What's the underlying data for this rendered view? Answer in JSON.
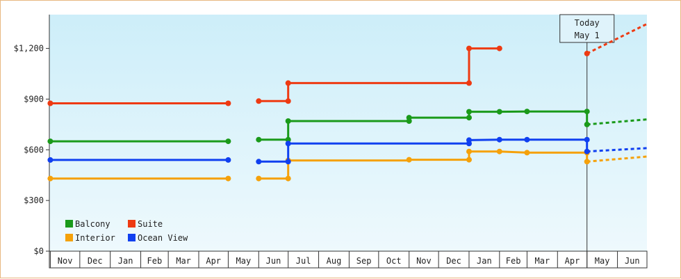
{
  "chart_data": {
    "type": "line",
    "title": "",
    "xlabel": "",
    "ylabel": "",
    "ylim": [
      0,
      1400
    ],
    "y_ticks": [
      0,
      300,
      600,
      900,
      1200
    ],
    "y_tick_labels": [
      "$0",
      "$300",
      "$600",
      "$900",
      "$1,200"
    ],
    "x_range": [
      "2017-10-31",
      "2019-07-01"
    ],
    "x_months": [
      "Nov",
      "Dec",
      "Jan",
      "Feb",
      "Mar",
      "Apr",
      "May",
      "Jun",
      "Jul",
      "Aug",
      "Sep",
      "Oct",
      "Nov",
      "Dec",
      "Jan",
      "Feb",
      "Mar",
      "Apr",
      "May",
      "Jun"
    ],
    "x_month_starts": [
      "2017-11-01",
      "2017-12-01",
      "2018-01-01",
      "2018-02-01",
      "2018-03-01",
      "2018-04-01",
      "2018-05-01",
      "2018-06-01",
      "2018-07-01",
      "2018-08-01",
      "2018-09-01",
      "2018-10-01",
      "2018-11-01",
      "2018-12-01",
      "2019-01-01",
      "2019-02-01",
      "2019-03-01",
      "2019-04-01",
      "2019-05-01",
      "2019-06-01"
    ],
    "today": {
      "date": "2019-05-01",
      "label_line1": "Today",
      "label_line2": "May 1"
    },
    "grid": false,
    "legend_position": "bottom-left",
    "series": [
      {
        "name": "Balcony",
        "color": "#1a9a1a",
        "segments": [
          [
            [
              "2017-11-01",
              650
            ],
            [
              "2018-05-01",
              650
            ]
          ],
          [
            [
              "2018-06-01",
              660
            ],
            [
              "2018-07-01",
              660
            ],
            [
              "2018-07-01",
              770
            ],
            [
              "2018-11-01",
              770
            ],
            [
              "2018-11-01",
              790
            ],
            [
              "2019-01-01",
              790
            ],
            [
              "2019-01-01",
              825
            ],
            [
              "2019-02-01",
              825
            ],
            [
              "2019-03-01",
              827
            ],
            [
              "2019-05-01",
              827
            ],
            [
              "2019-05-01",
              750
            ]
          ]
        ],
        "markers": [
          [
            "2017-11-01",
            650
          ],
          [
            "2018-05-01",
            650
          ],
          [
            "2018-06-01",
            660
          ],
          [
            "2018-07-01",
            660
          ],
          [
            "2018-07-01",
            770
          ],
          [
            "2018-11-01",
            770
          ],
          [
            "2018-11-01",
            790
          ],
          [
            "2019-01-01",
            790
          ],
          [
            "2019-01-01",
            825
          ],
          [
            "2019-02-01",
            825
          ],
          [
            "2019-03-01",
            827
          ],
          [
            "2019-05-01",
            827
          ],
          [
            "2019-05-01",
            750
          ]
        ],
        "forecast": [
          [
            "2019-05-01",
            750
          ],
          [
            "2019-07-01",
            780
          ]
        ]
      },
      {
        "name": "Suite",
        "color": "#ee3a12",
        "segments": [
          [
            [
              "2017-11-01",
              875
            ],
            [
              "2018-05-01",
              875
            ]
          ],
          [
            [
              "2018-06-01",
              888
            ],
            [
              "2018-07-01",
              888
            ],
            [
              "2018-07-01",
              995
            ],
            [
              "2019-01-01",
              995
            ],
            [
              "2019-01-01",
              1200
            ],
            [
              "2019-02-01",
              1200
            ]
          ]
        ],
        "markers": [
          [
            "2017-11-01",
            875
          ],
          [
            "2018-05-01",
            875
          ],
          [
            "2018-06-01",
            888
          ],
          [
            "2018-07-01",
            888
          ],
          [
            "2018-07-01",
            995
          ],
          [
            "2019-01-01",
            995
          ],
          [
            "2019-01-01",
            1200
          ],
          [
            "2019-02-01",
            1200
          ],
          [
            "2019-05-01",
            1170
          ]
        ],
        "forecast": [
          [
            "2019-05-01",
            1170
          ],
          [
            "2019-07-01",
            1345
          ]
        ]
      },
      {
        "name": "Interior",
        "color": "#f5a10a",
        "segments": [
          [
            [
              "2017-11-01",
              430
            ],
            [
              "2018-05-01",
              430
            ]
          ],
          [
            [
              "2018-06-01",
              430
            ],
            [
              "2018-07-01",
              430
            ],
            [
              "2018-07-01",
              537
            ],
            [
              "2018-11-01",
              537
            ],
            [
              "2018-11-01",
              541
            ],
            [
              "2019-01-01",
              541
            ],
            [
              "2019-01-01",
              590
            ],
            [
              "2019-02-01",
              590
            ],
            [
              "2019-03-01",
              583
            ],
            [
              "2019-05-01",
              583
            ],
            [
              "2019-05-01",
              530
            ]
          ]
        ],
        "markers": [
          [
            "2017-11-01",
            430
          ],
          [
            "2018-05-01",
            430
          ],
          [
            "2018-06-01",
            430
          ],
          [
            "2018-07-01",
            430
          ],
          [
            "2018-07-01",
            537
          ],
          [
            "2018-11-01",
            541
          ],
          [
            "2019-01-01",
            541
          ],
          [
            "2019-01-01",
            590
          ],
          [
            "2019-02-01",
            590
          ],
          [
            "2019-03-01",
            583
          ],
          [
            "2019-05-01",
            583
          ],
          [
            "2019-05-01",
            530
          ]
        ],
        "forecast": [
          [
            "2019-05-01",
            530
          ],
          [
            "2019-07-01",
            560
          ]
        ]
      },
      {
        "name": "Ocean View",
        "color": "#1040f0",
        "segments": [
          [
            [
              "2017-11-01",
              540
            ],
            [
              "2018-05-01",
              540
            ]
          ],
          [
            [
              "2018-06-01",
              530
            ],
            [
              "2018-07-01",
              530
            ],
            [
              "2018-07-01",
              637
            ],
            [
              "2019-01-01",
              637
            ],
            [
              "2019-01-01",
              657
            ],
            [
              "2019-02-01",
              660
            ],
            [
              "2019-05-01",
              660
            ],
            [
              "2019-05-01",
              590
            ]
          ]
        ],
        "markers": [
          [
            "2017-11-01",
            540
          ],
          [
            "2018-05-01",
            540
          ],
          [
            "2018-06-01",
            530
          ],
          [
            "2018-07-01",
            530
          ],
          [
            "2018-07-01",
            637
          ],
          [
            "2019-01-01",
            637
          ],
          [
            "2019-01-01",
            657
          ],
          [
            "2019-02-01",
            660
          ],
          [
            "2019-03-01",
            660
          ],
          [
            "2019-05-01",
            660
          ],
          [
            "2019-05-01",
            590
          ]
        ],
        "forecast": [
          [
            "2019-05-01",
            590
          ],
          [
            "2019-07-01",
            610
          ]
        ]
      }
    ]
  },
  "legend_rows": [
    [
      "Balcony",
      "Suite"
    ],
    [
      "Interior",
      "Ocean View"
    ]
  ]
}
